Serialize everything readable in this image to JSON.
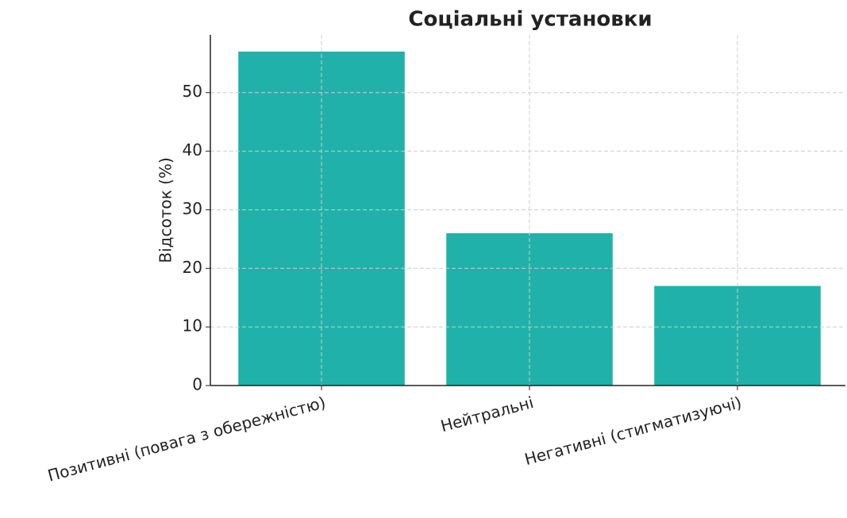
{
  "chart_data": {
    "type": "bar",
    "title": "Соціальні установки",
    "y_label": "Відсоток (%)",
    "categories": [
      "Позитивні (повага з обережністю)",
      "Нейтральні",
      "Негативні (стигматизуючі)"
    ],
    "values": [
      57,
      26,
      17
    ],
    "color": "#20b2aa",
    "ylim": [
      0,
      59.85
    ],
    "yticks": [
      0,
      10,
      20,
      30,
      40,
      50
    ],
    "grid": true
  }
}
